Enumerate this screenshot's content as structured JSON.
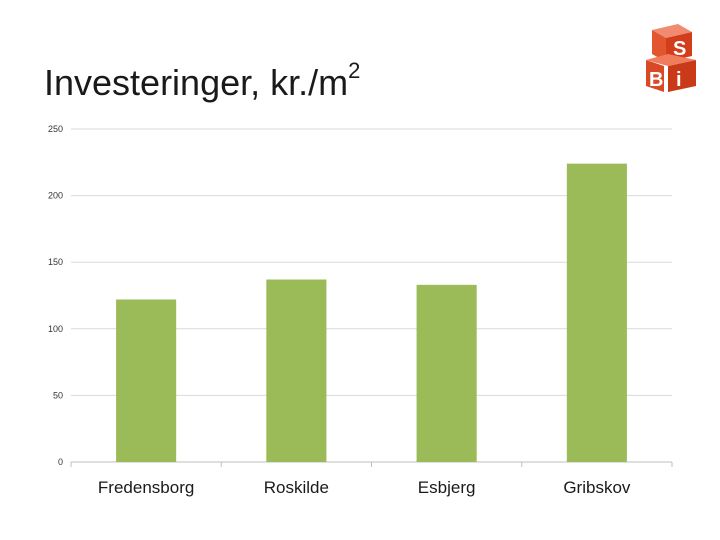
{
  "slide": {
    "title_main": "Investeringer, kr./m",
    "title_sup": "2"
  },
  "logo": {
    "text": "SBi"
  },
  "chart_data": {
    "type": "bar",
    "title": "Investeringer, kr./m²",
    "categories": [
      "Fredensborg",
      "Roskilde",
      "Esbjerg",
      "Gribskov"
    ],
    "values": [
      122,
      137,
      133,
      224
    ],
    "ylim": [
      0,
      250
    ],
    "yticks": [
      0,
      50,
      100,
      150,
      200,
      250
    ],
    "xlabel": "",
    "ylabel": "",
    "grid": true,
    "legend": "none",
    "colors": {
      "bar": "#9bbb59",
      "grid": "#d9d9d9",
      "axis": "#bfbfbf"
    }
  }
}
